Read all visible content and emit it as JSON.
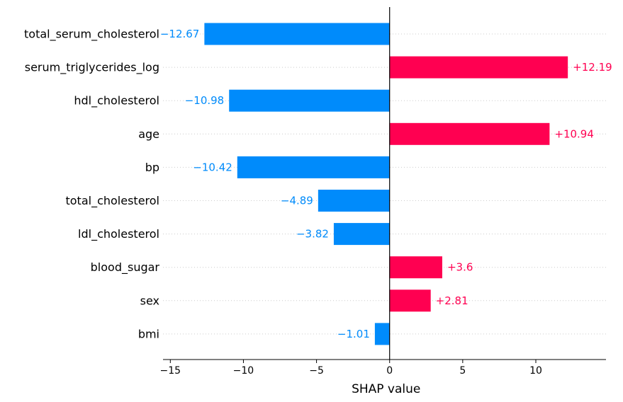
{
  "chart_data": {
    "type": "bar",
    "orientation": "horizontal",
    "title": "",
    "xlabel": "SHAP value",
    "ylabel": "",
    "xlim": [
      -15.5,
      14.8
    ],
    "xticks": [
      -15,
      -10,
      -5,
      0,
      5,
      10
    ],
    "xtick_labels": [
      "−15",
      "−10",
      "−5",
      "0",
      "5",
      "10"
    ],
    "grid": "dotted horizontal lines per feature",
    "categories": [
      "total_serum_cholesterol",
      "serum_triglycerides_log",
      "hdl_cholesterol",
      "age",
      "bp",
      "total_cholesterol",
      "ldl_cholesterol",
      "blood_sugar",
      "sex",
      "bmi"
    ],
    "values": [
      -12.67,
      12.19,
      -10.98,
      10.94,
      -10.42,
      -4.89,
      -3.82,
      3.6,
      2.81,
      -1.01
    ],
    "value_labels": [
      "−12.67",
      "+12.19",
      "−10.98",
      "+10.94",
      "−10.42",
      "−4.89",
      "−3.82",
      "+3.6",
      "+2.81",
      "−1.01"
    ],
    "colors": {
      "positive": "#ff0051",
      "negative": "#008bfb"
    }
  }
}
